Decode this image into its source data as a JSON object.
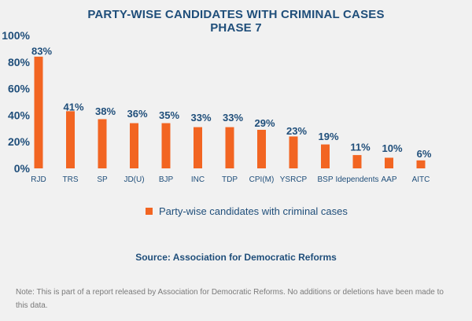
{
  "title_line1": "PARTY-WISE  CANDIDATES WITH CRIMINAL CASES",
  "title_line2": "PHASE 7",
  "legend_label": "Party-wise  candidates with criminal cases",
  "source_text": "Source: Association for Democratic Reforms",
  "note_text": "Note: This is part of a report released by Association for Democratic Reforms. No additions or  deletions have been made to this data.",
  "bar_color": "#f26522",
  "text_color": "#1f4e7a",
  "chart_data": {
    "type": "bar",
    "categories": [
      "RJD",
      "TRS",
      "SP",
      "JD(U)",
      "BJP",
      "INC",
      "TDP",
      "CPI(M)",
      "YSRCP",
      "BSP",
      "Idependents",
      "AAP",
      "AITC"
    ],
    "values": [
      83,
      41,
      38,
      36,
      35,
      33,
      33,
      29,
      23,
      19,
      11,
      10,
      6
    ],
    "value_labels": [
      "83%",
      "41%",
      "38%",
      "36%",
      "35%",
      "33%",
      "33%",
      "29%",
      "23%",
      "19%",
      "11%",
      "10%",
      "6%"
    ],
    "bar_heights": [
      84,
      43,
      37,
      34,
      34,
      31,
      31,
      29,
      24,
      18,
      10,
      8,
      6
    ],
    "yticks": [
      "0%",
      "20%",
      "40%",
      "60%",
      "80%",
      "100%"
    ],
    "ytick_values": [
      0,
      20,
      40,
      60,
      80,
      100
    ],
    "ylim": [
      0,
      100
    ],
    "legend_position": "bottom",
    "grid": false
  }
}
